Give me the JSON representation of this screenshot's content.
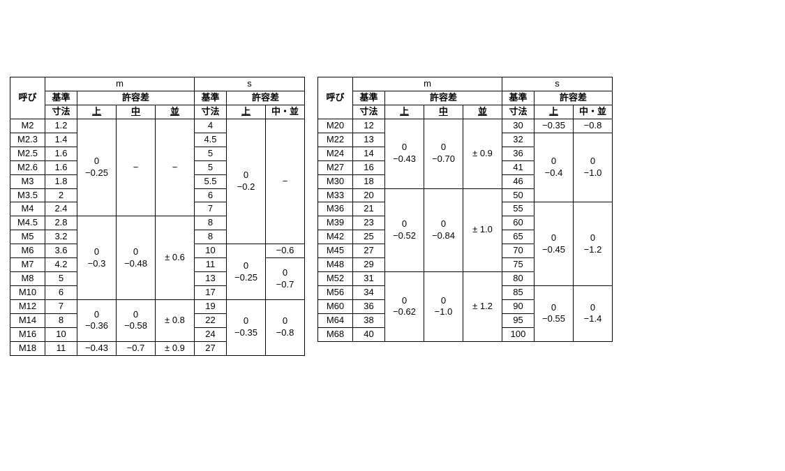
{
  "headers": {
    "yobi": "呼び",
    "m": "m",
    "s": "s",
    "kijun": "基準",
    "sunpo": "寸法",
    "kyoyo": "許容差",
    "ue": "上",
    "chu": "中",
    "nami": "並",
    "chu_nami": "中・並"
  },
  "left": {
    "rows": [
      {
        "y": "M2",
        "k": "1.2",
        "s": "4"
      },
      {
        "y": "M2.3",
        "k": "1.4",
        "s": "4.5"
      },
      {
        "y": "M2.5",
        "k": "1.6",
        "s": "5"
      },
      {
        "y": "M2.6",
        "k": "1.6",
        "s": "5"
      },
      {
        "y": "M3",
        "k": "1.8",
        "s": "5.5"
      },
      {
        "y": "M3.5",
        "k": "2",
        "s": "6"
      },
      {
        "y": "M4",
        "k": "2.4",
        "s": "7"
      },
      {
        "y": "M4.5",
        "k": "2.8",
        "s": "8"
      },
      {
        "y": "M5",
        "k": "3.2",
        "s": "8"
      },
      {
        "y": "M6",
        "k": "3.6",
        "s": "10"
      },
      {
        "y": "M7",
        "k": "4.2",
        "s": "11"
      },
      {
        "y": "M8",
        "k": "5",
        "s": "13"
      },
      {
        "y": "M10",
        "k": "6",
        "s": "17"
      },
      {
        "y": "M12",
        "k": "7",
        "s": "19"
      },
      {
        "y": "M14",
        "k": "8",
        "s": "22"
      },
      {
        "y": "M16",
        "k": "10",
        "s": "24"
      },
      {
        "y": "M18",
        "k": "11",
        "s": "27"
      }
    ],
    "m_ue": {
      "g1": "0\n−0.25",
      "g2": "0\n−0.3",
      "g3": "0\n−0.36",
      "g4": "−0.43"
    },
    "m_chu": {
      "g1": "−",
      "g2": "0\n−0.48",
      "g3": "0\n−0.58",
      "g4": "−0.7"
    },
    "m_nami": {
      "g1": "−",
      "g2": "± 0.6",
      "g3": "± 0.8",
      "g4": "± 0.9"
    },
    "s_ue": {
      "g1": "0\n−0.2",
      "g2": "0\n−0.25",
      "g3": "0\n−0.35"
    },
    "s_cn": {
      "g1": "−",
      "g2": "−0.6",
      "g3": "0\n−0.7",
      "g4": "0\n−0.8"
    }
  },
  "right": {
    "rows": [
      {
        "y": "M20",
        "k": "12",
        "s": "30"
      },
      {
        "y": "M22",
        "k": "13",
        "s": "32"
      },
      {
        "y": "M24",
        "k": "14",
        "s": "36"
      },
      {
        "y": "M27",
        "k": "16",
        "s": "41"
      },
      {
        "y": "M30",
        "k": "18",
        "s": "46"
      },
      {
        "y": "M33",
        "k": "20",
        "s": "50"
      },
      {
        "y": "M36",
        "k": "21",
        "s": "55"
      },
      {
        "y": "M39",
        "k": "23",
        "s": "60"
      },
      {
        "y": "M42",
        "k": "25",
        "s": "65"
      },
      {
        "y": "M45",
        "k": "27",
        "s": "70"
      },
      {
        "y": "M48",
        "k": "29",
        "s": "75"
      },
      {
        "y": "M52",
        "k": "31",
        "s": "80"
      },
      {
        "y": "M56",
        "k": "34",
        "s": "85"
      },
      {
        "y": "M60",
        "k": "36",
        "s": "90"
      },
      {
        "y": "M64",
        "k": "38",
        "s": "95"
      },
      {
        "y": "M68",
        "k": "40",
        "s": "100"
      }
    ],
    "m_ue": {
      "g1": "0\n−0.43",
      "g2": "0\n−0.52",
      "g3": "0\n−0.62"
    },
    "m_chu": {
      "g1": "0\n−0.70",
      "g2": "0\n−0.84",
      "g3": "0\n−1.0"
    },
    "m_nami": {
      "g1": "± 0.9",
      "g2": "± 1.0",
      "g3": "± 1.2"
    },
    "s_ue": {
      "g1": "−0.35",
      "g2": "0\n−0.4",
      "g3": "0\n−0.45",
      "g4": "0\n−0.55"
    },
    "s_cn": {
      "g1": "−0.8",
      "g2": "0\n−1.0",
      "g3": "0\n−1.2",
      "g4": "0\n−1.4"
    }
  }
}
